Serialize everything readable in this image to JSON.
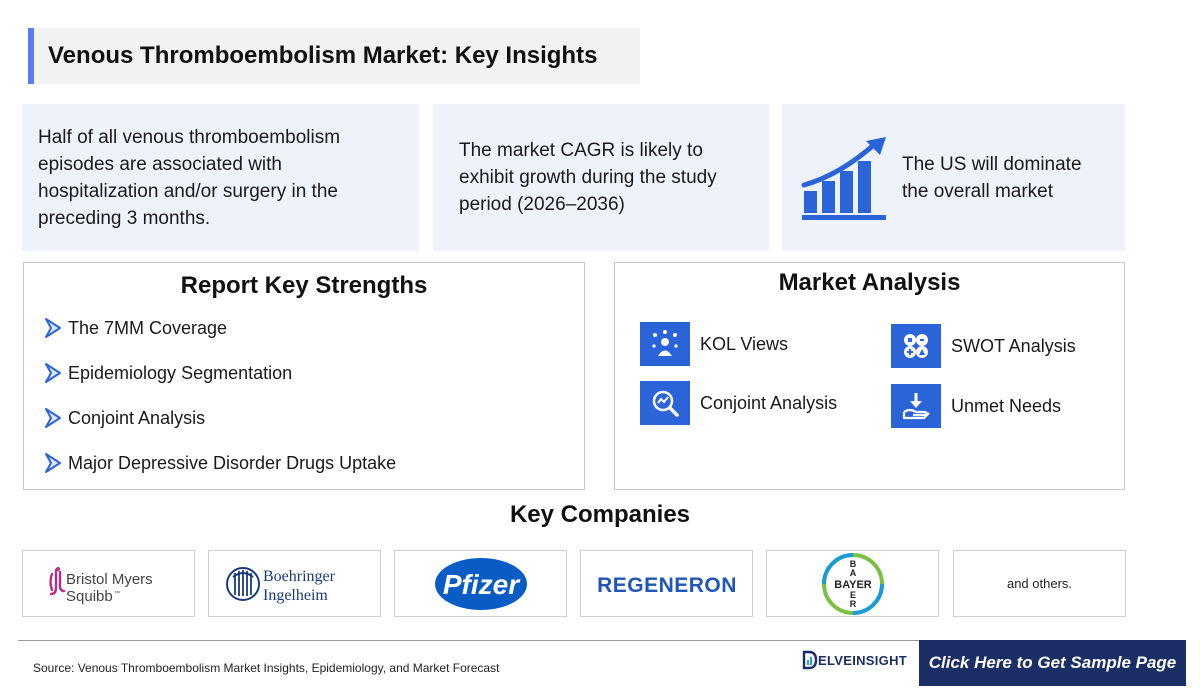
{
  "title": "Venous Thromboembolism Market: Key Insights",
  "insights": {
    "i1": "Half of all venous thromboembolism episodes are associated with hospitalization and/or surgery in the preceding 3 months.",
    "i2": "The market CAGR is likely to exhibit growth during the study period (2026–2036)",
    "i3": "The US will dominate the overall market",
    "i3_icon": "growth-chart-icon"
  },
  "strengths": {
    "heading": "Report Key Strengths",
    "items": [
      "The 7MM Coverage",
      "Epidemiology Segmentation",
      "Conjoint Analysis",
      "Major Depressive Disorder Drugs Uptake"
    ]
  },
  "analysis": {
    "heading": "Market Analysis",
    "items": [
      {
        "label": "KOL Views",
        "icon": "kol-views-icon"
      },
      {
        "label": "SWOT Analysis",
        "icon": "swot-icon"
      },
      {
        "label": "Conjoint Analysis",
        "icon": "conjoint-analysis-icon"
      },
      {
        "label": "Unmet Needs",
        "icon": "unmet-needs-icon"
      }
    ]
  },
  "companies": {
    "heading": "Key Companies",
    "logos": [
      "Bristol Myers Squibb",
      "Boehringer Ingelheim",
      "Pfizer",
      "REGENERON",
      "BAYER"
    ],
    "others": "and others."
  },
  "footer": {
    "source": "Source: Venous Thromboembolism Market Insights, Epidemiology, and Market Forecast",
    "brand": "ELVEINSIGHT",
    "cta": "Click Here to Get Sample Page"
  },
  "colors": {
    "accent": "#5b7bf3",
    "icon_blue": "#2b63d9",
    "navy": "#1b2f66",
    "insight_bg": "#eef3fb"
  }
}
